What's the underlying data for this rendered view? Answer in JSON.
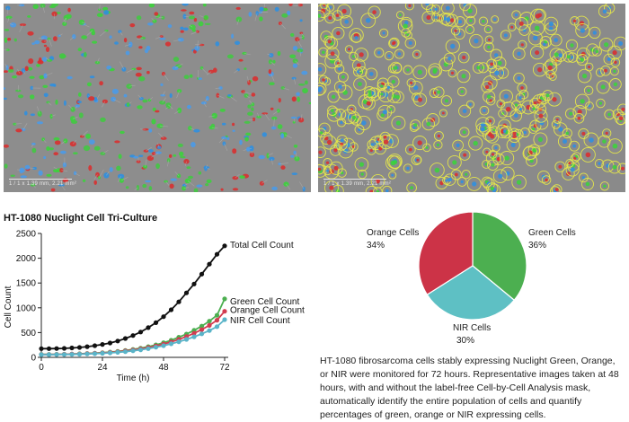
{
  "micrographs": [
    {
      "scale_text": "1 / 1 x 1.39 mm, 2.21 mm²",
      "label_type": "fluorescence-overlay"
    },
    {
      "scale_text": "1 / 1 x 1.39 mm, 2.21 mm²",
      "label_type": "segmentation-mask"
    }
  ],
  "colors": {
    "total": "#111111",
    "green": "#4caf50",
    "orange": "#d23c50",
    "nir": "#5ab4c8",
    "pie_green": "#4caf50",
    "pie_orange": "#cc3347",
    "pie_nir": "#5ec0c4"
  },
  "chart_data": [
    {
      "type": "line",
      "title": "HT-1080 Nuclight Cell Tri-Culture",
      "xlabel": "Time (h)",
      "ylabel": "Cell Count",
      "xlim": [
        0,
        72
      ],
      "ylim": [
        0,
        2500
      ],
      "xticks": [
        0,
        24,
        48,
        72
      ],
      "yticks": [
        0,
        500,
        1000,
        1500,
        2000,
        2500
      ],
      "x": [
        0,
        3,
        6,
        9,
        12,
        15,
        18,
        21,
        24,
        27,
        30,
        33,
        36,
        39,
        42,
        45,
        48,
        51,
        54,
        57,
        60,
        63,
        66,
        69,
        72
      ],
      "series": [
        {
          "name": "Total Cell Count",
          "color_key": "total",
          "values": [
            175,
            175,
            178,
            182,
            190,
            200,
            215,
            235,
            260,
            290,
            330,
            380,
            440,
            510,
            600,
            700,
            820,
            960,
            1120,
            1300,
            1480,
            1680,
            1880,
            2080,
            2250
          ]
        },
        {
          "name": "Green Cell Count",
          "color_key": "green",
          "values": [
            60,
            60,
            62,
            64,
            67,
            72,
            78,
            86,
            95,
            106,
            120,
            138,
            160,
            185,
            215,
            252,
            295,
            345,
            405,
            470,
            545,
            630,
            730,
            850,
            1180
          ]
        },
        {
          "name": "Orange Cell Count",
          "color_key": "orange",
          "values": [
            58,
            58,
            60,
            62,
            65,
            69,
            74,
            81,
            89,
            99,
            112,
            128,
            148,
            171,
            198,
            230,
            268,
            312,
            362,
            420,
            485,
            560,
            645,
            750,
            930
          ]
        },
        {
          "name": "NIR Cell Count",
          "color_key": "nir",
          "values": [
            55,
            55,
            56,
            58,
            60,
            63,
            68,
            74,
            81,
            90,
            101,
            115,
            132,
            152,
            176,
            204,
            236,
            273,
            315,
            362,
            415,
            475,
            540,
            620,
            760
          ]
        }
      ],
      "legend_placement": "right-of-line-ends"
    },
    {
      "type": "pie",
      "slices": [
        {
          "label": "Green Cells",
          "value": 36,
          "value_label": "36%",
          "color_key": "pie_green"
        },
        {
          "label": "NIR Cells",
          "value": 30,
          "value_label": "30%",
          "color_key": "pie_nir"
        },
        {
          "label": "Orange Cells",
          "value": 34,
          "value_label": "34%",
          "color_key": "pie_orange"
        }
      ]
    }
  ],
  "caption": "HT-1080 fibrosarcoma cells stably expressing Nuclight Green, Orange, or NIR were monitored for 72 hours. Representative images taken at 48 hours, with and without the label-free Cell-by-Cell Analysis mask, automatically identify the entire population of cells and quantify percentages of green, orange or NIR expressing cells."
}
